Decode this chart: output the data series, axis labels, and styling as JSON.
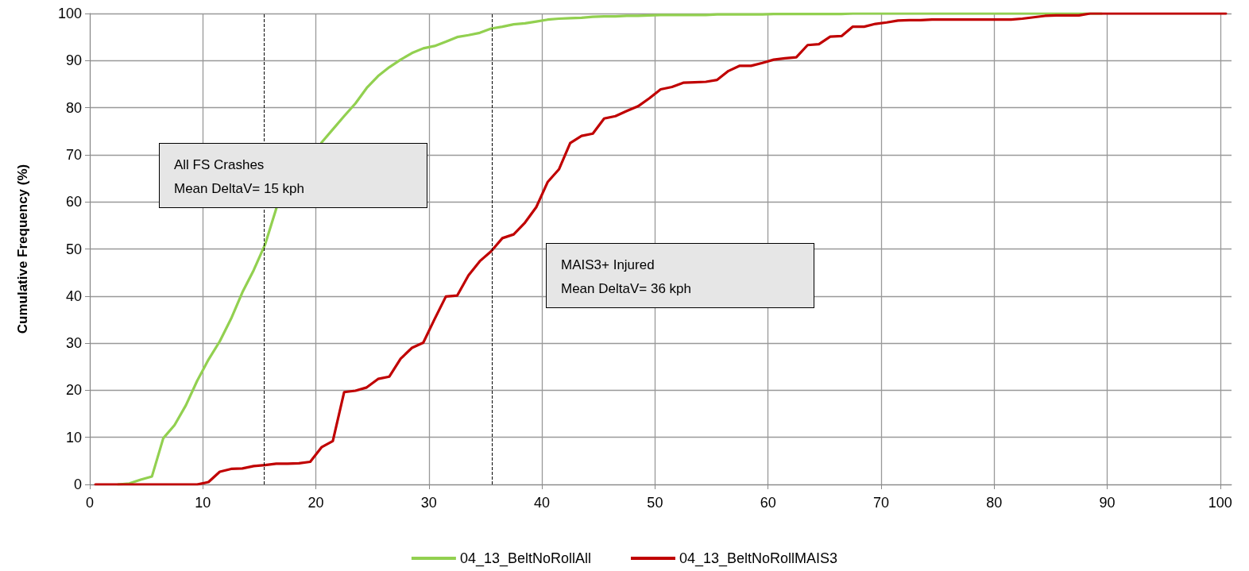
{
  "chart_data": {
    "type": "line",
    "ylabel": "Cumulative Frequency (%)",
    "x": [
      0.5,
      1.5,
      2.5,
      3.5,
      4.5,
      5.5,
      6.5,
      7.5,
      8.5,
      9.5,
      10.5,
      11.5,
      12.5,
      13.5,
      14.5,
      15.5,
      16.5,
      17.5,
      18.5,
      19.5,
      20.5,
      21.5,
      22.5,
      23.5,
      24.5,
      25.5,
      26.5,
      27.5,
      28.5,
      29.5,
      30.5,
      31.5,
      32.5,
      33.5,
      34.5,
      35.5,
      36.5,
      37.5,
      38.5,
      39.5,
      40.5,
      41.5,
      42.5,
      43.5,
      44.5,
      45.5,
      46.5,
      47.5,
      48.5,
      49.5,
      50.5,
      51.5,
      52.5,
      53.5,
      54.5,
      55.5,
      56.5,
      57.5,
      58.5,
      59.5,
      60.5,
      61.5,
      62.5,
      63.5,
      64.5,
      65.5,
      66.5,
      67.5,
      68.5,
      69.5,
      70.5,
      71.5,
      72.5,
      73.5,
      74.5,
      75.5,
      76.5,
      77.5,
      78.5,
      79.5,
      80.5,
      81.5,
      82.5,
      83.5,
      84.5,
      85.5,
      86.5,
      87.5,
      88.5,
      89.5,
      90.5,
      91.5,
      92.5,
      93.5,
      94.5,
      95.5,
      96.5,
      97.5,
      98.5,
      99.5,
      100.5
    ],
    "series": [
      {
        "name": "04_13_BeltNoRollAll",
        "color": "#92d050",
        "values": [
          null,
          null,
          0,
          0.2,
          1,
          1.7,
          9.8,
          12.6,
          16.8,
          22,
          26.5,
          30.4,
          35.2,
          40.8,
          45.5,
          50.9,
          58.6,
          null,
          null,
          null,
          72.6,
          75.4,
          78.2,
          80.9,
          84.2,
          86.7,
          88.6,
          90.2,
          91.6,
          92.6,
          93.1,
          94,
          95,
          95.4,
          95.9,
          96.8,
          97.2,
          97.7,
          97.9,
          98.3,
          98.7,
          98.9,
          99,
          99.1,
          99.3,
          99.4,
          99.4,
          99.5,
          99.5,
          99.6,
          99.7,
          99.7,
          99.7,
          99.7,
          99.7,
          99.8,
          99.8,
          99.8,
          99.8,
          99.8,
          99.9,
          99.9,
          99.9,
          99.9,
          99.9,
          99.9,
          99.9,
          100,
          100,
          100,
          100,
          100,
          100,
          100,
          100,
          100,
          100,
          100,
          100,
          100,
          100,
          100,
          100,
          100,
          100,
          100,
          100,
          100,
          100,
          100,
          null,
          null,
          null,
          null,
          null,
          null,
          null,
          null,
          null,
          null,
          null
        ]
      },
      {
        "name": "04_13_BeltNoRollMAIS3",
        "color": "#c00000",
        "values": [
          0,
          0,
          0,
          0,
          0,
          0,
          0,
          0,
          0,
          0,
          0.5,
          2.7,
          3.3,
          3.4,
          3.9,
          4.1,
          4.4,
          4.4,
          4.5,
          4.8,
          7.9,
          9.2,
          19.6,
          19.9,
          20.6,
          22.4,
          22.9,
          26.7,
          29,
          30.1,
          35.1,
          39.9,
          40.1,
          44.4,
          47.4,
          49.5,
          52.3,
          53.1,
          55.6,
          58.9,
          64.2,
          66.9,
          72.5,
          74,
          74.5,
          77.7,
          78.2,
          79.3,
          80.3,
          82,
          83.9,
          84.4,
          85.3,
          85.4,
          85.5,
          85.9,
          87.8,
          88.9,
          88.9,
          89.5,
          90.2,
          90.5,
          90.7,
          93.3,
          93.5,
          95.1,
          95.2,
          97.2,
          97.2,
          97.8,
          98.1,
          98.5,
          98.6,
          98.6,
          98.7,
          98.7,
          98.7,
          98.7,
          98.7,
          98.7,
          98.7,
          98.7,
          98.9,
          99.2,
          99.5,
          99.6,
          99.6,
          99.6,
          100,
          100,
          100,
          100,
          100,
          100,
          100,
          100,
          100,
          100,
          100,
          100,
          100
        ]
      }
    ],
    "xlim": [
      0,
      101
    ],
    "xticks": [
      0,
      10,
      20,
      30,
      40,
      50,
      60,
      70,
      80,
      90,
      100
    ],
    "ylim": [
      0,
      100
    ],
    "yticks": [
      0,
      10,
      20,
      30,
      40,
      50,
      60,
      70,
      80,
      90,
      100
    ],
    "ref_lines": [
      {
        "axis": "x",
        "value": 15.4,
        "color": "#000000",
        "line_style": "dashed"
      },
      {
        "axis": "x",
        "value": 35.6,
        "color": "#000000",
        "line_style": "dashed"
      }
    ],
    "annotations": [
      "All FS Crashes\nMean DeltaV= 15 kph",
      "MAIS3+ Injured\nMean DeltaV= 36 kph"
    ],
    "grid": true,
    "legend": "bottom",
    "marker": "none",
    "line_style": "solid"
  }
}
